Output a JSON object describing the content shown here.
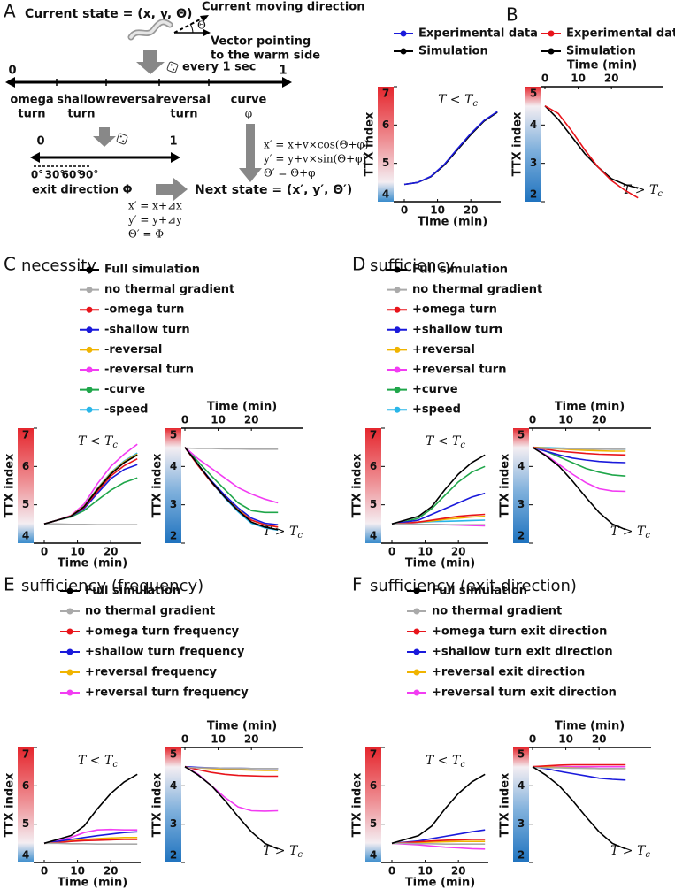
{
  "diagram": {
    "label": "A",
    "current_state": "Current state = (x, y, Θ)",
    "moving_direction": "Current moving direction",
    "theta": "Θ",
    "vector": [
      "Vector pointing",
      "to the warm side"
    ],
    "interval": "every 1 sec",
    "scale_start": "0",
    "scale_end": "1",
    "behaviors": [
      [
        "omega",
        "turn"
      ],
      [
        "shallow",
        "turn"
      ],
      [
        "reversal"
      ],
      [
        "reversal",
        "turn"
      ],
      [
        "curve",
        "φ"
      ]
    ],
    "exit_scale_start": "0",
    "exit_scale_end": "1",
    "angles": [
      "0°",
      "30°",
      "60°",
      "90°"
    ],
    "exit_direction": "exit direction Φ",
    "next_state": "Next state = (x′, y′, Θ′)",
    "turn_update": [
      "x′ = x+⊿x",
      "y′ = y+⊿y",
      "Θ′ = Φ"
    ],
    "curve_update": [
      "x′ = x+v×cos(Θ+φ)",
      "y′ = y+v×sin(Θ+φ)",
      "Θ′ = Θ+φ"
    ]
  },
  "chart_data": [
    {
      "type": "line",
      "label": "B",
      "x": [
        0,
        4,
        8,
        12,
        16,
        20,
        24,
        28
      ],
      "xlim": [
        0,
        29
      ],
      "xticks": [
        0,
        10,
        20
      ],
      "xlabel": "Time (min)",
      "ylabel": "TTX index",
      "left": {
        "ylim": [
          4,
          7
        ],
        "yticks": [
          4,
          5,
          6,
          7
        ],
        "annotation": {
          "main": "T < T",
          "subscript": "c"
        }
      },
      "right": {
        "ylim": [
          2,
          5
        ],
        "yticks": [
          2,
          3,
          4,
          5
        ],
        "annotation": {
          "main": "T > T",
          "subscript": "c"
        }
      },
      "series": [
        {
          "name": "Experimental data",
          "color": "#1a1adb",
          "values": [
            4.45,
            4.5,
            4.66,
            4.97,
            5.38,
            5.78,
            6.12,
            6.35
          ]
        },
        {
          "name": "Simulation",
          "color": "#000000",
          "values": [
            4.45,
            4.5,
            4.65,
            4.95,
            5.35,
            5.75,
            6.1,
            6.33
          ]
        },
        {
          "name": "Experimental data",
          "color": "#e8141b",
          "values_right": [
            4.5,
            4.3,
            3.85,
            3.35,
            2.9,
            2.55,
            2.3,
            2.1
          ]
        },
        {
          "name": "Simulation",
          "color": "#000000",
          "values_right": [
            4.5,
            4.15,
            3.7,
            3.25,
            2.9,
            2.6,
            2.45,
            2.35
          ]
        }
      ]
    },
    {
      "type": "line",
      "label": "C",
      "title": "necessity",
      "x": [
        0,
        4,
        8,
        12,
        16,
        20,
        24,
        28
      ],
      "xlim": [
        0,
        29
      ],
      "xticks": [
        0,
        10,
        20
      ],
      "xlabel": "Time (min)",
      "ylabel": "TTX index",
      "left": {
        "ylim": [
          4,
          7
        ],
        "yticks": [
          4,
          5,
          6,
          7
        ],
        "annotation": {
          "main": "T < T",
          "subscript": "c"
        }
      },
      "right": {
        "ylim": [
          2,
          5
        ],
        "yticks": [
          2,
          3,
          4,
          5
        ],
        "annotation": {
          "main": "T > T",
          "subscript": "c"
        }
      },
      "series": [
        {
          "name": "Full simulation",
          "color": "#000000",
          "values": [
            4.5,
            4.6,
            4.7,
            4.95,
            5.4,
            5.8,
            6.1,
            6.3
          ],
          "values_right": [
            4.5,
            4.05,
            3.6,
            3.2,
            2.85,
            2.55,
            2.42,
            2.35
          ]
        },
        {
          "name": "no thermal gradient",
          "color": "#aaaaaa",
          "values": [
            4.5,
            4.5,
            4.49,
            4.49,
            4.48,
            4.48,
            4.48,
            4.48
          ],
          "values_right": [
            4.48,
            4.47,
            4.47,
            4.46,
            4.46,
            4.45,
            4.45,
            4.45
          ]
        },
        {
          "name": "-omega turn",
          "color": "#e8141b",
          "values": [
            4.5,
            4.6,
            4.7,
            4.93,
            5.35,
            5.75,
            6.02,
            6.2
          ],
          "values_right": [
            4.5,
            4.02,
            3.58,
            3.2,
            2.85,
            2.6,
            2.48,
            2.42
          ]
        },
        {
          "name": "-shallow turn",
          "color": "#1a1adb",
          "values": [
            4.5,
            4.6,
            4.7,
            4.9,
            5.3,
            5.68,
            5.92,
            6.05
          ],
          "values_right": [
            4.5,
            4.05,
            3.62,
            3.25,
            2.92,
            2.65,
            2.52,
            2.48
          ]
        },
        {
          "name": "-reversal",
          "color": "#f0b400",
          "values": [
            4.5,
            4.6,
            4.71,
            4.96,
            5.42,
            5.82,
            6.12,
            6.32
          ],
          "values_right": [
            4.5,
            4.04,
            3.6,
            3.22,
            2.88,
            2.6,
            2.48,
            2.42
          ]
        },
        {
          "name": "-reversal turn",
          "color": "#f23cf2",
          "values": [
            4.5,
            4.6,
            4.72,
            5.02,
            5.55,
            6.0,
            6.32,
            6.58
          ],
          "values_right": [
            4.5,
            4.2,
            3.95,
            3.7,
            3.45,
            3.28,
            3.15,
            3.05
          ]
        },
        {
          "name": "-curve",
          "color": "#1fa64a",
          "values": [
            4.5,
            4.6,
            4.68,
            4.85,
            5.12,
            5.38,
            5.58,
            5.7
          ],
          "values_right": [
            4.5,
            4.12,
            3.75,
            3.4,
            3.05,
            2.85,
            2.8,
            2.8
          ]
        },
        {
          "name": "-speed",
          "color": "#29b6e8",
          "values": [
            4.5,
            4.6,
            4.71,
            4.97,
            5.43,
            5.84,
            6.14,
            6.35
          ],
          "values_right": [
            4.5,
            4.03,
            3.58,
            3.18,
            2.82,
            2.52,
            2.4,
            2.34
          ]
        }
      ]
    },
    {
      "type": "line",
      "label": "D",
      "title": "sufficiency",
      "x": [
        0,
        4,
        8,
        12,
        16,
        20,
        24,
        28
      ],
      "xlim": [
        0,
        29
      ],
      "xticks": [
        0,
        10,
        20
      ],
      "xlabel": "Time (min)",
      "ylabel": "TTX index",
      "left": {
        "ylim": [
          4,
          7
        ],
        "yticks": [
          4,
          5,
          6,
          7
        ],
        "annotation": {
          "main": "T < T",
          "subscript": "c"
        }
      },
      "right": {
        "ylim": [
          2,
          5
        ],
        "yticks": [
          2,
          3,
          4,
          5
        ],
        "annotation": {
          "main": "T > T",
          "subscript": "c"
        }
      },
      "series": [
        {
          "name": "Full simulation",
          "color": "#000000",
          "values": [
            4.5,
            4.6,
            4.7,
            4.95,
            5.4,
            5.8,
            6.1,
            6.3
          ],
          "values_right": [
            4.5,
            4.28,
            4.0,
            3.62,
            3.2,
            2.8,
            2.5,
            2.35
          ]
        },
        {
          "name": "no thermal gradient",
          "color": "#aaaaaa",
          "values": [
            4.5,
            4.5,
            4.49,
            4.49,
            4.48,
            4.48,
            4.48,
            4.48
          ],
          "values_right": [
            4.48,
            4.47,
            4.47,
            4.46,
            4.46,
            4.45,
            4.45,
            4.45
          ]
        },
        {
          "name": "+omega turn",
          "color": "#e8141b",
          "values": [
            4.5,
            4.52,
            4.55,
            4.6,
            4.65,
            4.7,
            4.73,
            4.75
          ],
          "values_right": [
            4.5,
            4.45,
            4.4,
            4.37,
            4.34,
            4.32,
            4.31,
            4.3
          ]
        },
        {
          "name": "+shallow turn",
          "color": "#1a1adb",
          "values": [
            4.5,
            4.55,
            4.6,
            4.75,
            4.9,
            5.05,
            5.2,
            5.3
          ],
          "values_right": [
            4.5,
            4.4,
            4.3,
            4.22,
            4.17,
            4.13,
            4.11,
            4.1
          ]
        },
        {
          "name": "+reversal",
          "color": "#f0b400",
          "values": [
            4.5,
            4.52,
            4.55,
            4.58,
            4.62,
            4.65,
            4.68,
            4.7
          ],
          "values_right": [
            4.5,
            4.48,
            4.46,
            4.44,
            4.42,
            4.41,
            4.4,
            4.4
          ]
        },
        {
          "name": "+reversal turn",
          "color": "#f23cf2",
          "values": [
            4.5,
            4.5,
            4.49,
            4.49,
            4.48,
            4.47,
            4.46,
            4.45
          ],
          "values_right": [
            4.5,
            4.3,
            4.05,
            3.8,
            3.58,
            3.42,
            3.36,
            3.35
          ]
        },
        {
          "name": "+curve",
          "color": "#1fa64a",
          "values": [
            4.5,
            4.56,
            4.65,
            4.9,
            5.25,
            5.6,
            5.85,
            6.0
          ],
          "values_right": [
            4.5,
            4.4,
            4.25,
            4.1,
            3.95,
            3.85,
            3.78,
            3.75
          ]
        },
        {
          "name": "+speed",
          "color": "#29b6e8",
          "values": [
            4.5,
            4.52,
            4.54,
            4.56,
            4.57,
            4.58,
            4.59,
            4.6
          ],
          "values_right": [
            4.5,
            4.49,
            4.48,
            4.47,
            4.46,
            4.46,
            4.45,
            4.45
          ]
        }
      ]
    },
    {
      "type": "line",
      "label": "E",
      "title": "sufficiency (frequency)",
      "x": [
        0,
        4,
        8,
        12,
        16,
        20,
        24,
        28
      ],
      "xlim": [
        0,
        29
      ],
      "xticks": [
        0,
        10,
        20
      ],
      "xlabel": "Time (min)",
      "ylabel": "TTX index",
      "left": {
        "ylim": [
          4,
          7
        ],
        "yticks": [
          4,
          5,
          6,
          7
        ],
        "annotation": {
          "main": "T < T",
          "subscript": "c"
        }
      },
      "right": {
        "ylim": [
          2,
          5
        ],
        "yticks": [
          2,
          3,
          4,
          5
        ],
        "annotation": {
          "main": "T > T",
          "subscript": "c"
        }
      },
      "series": [
        {
          "name": "Full simulation",
          "color": "#000000",
          "values": [
            4.5,
            4.6,
            4.7,
            4.95,
            5.4,
            5.8,
            6.1,
            6.3
          ],
          "values_right": [
            4.5,
            4.28,
            4.0,
            3.62,
            3.2,
            2.8,
            2.5,
            2.35
          ]
        },
        {
          "name": "no thermal gradient",
          "color": "#aaaaaa",
          "values": [
            4.5,
            4.5,
            4.49,
            4.49,
            4.48,
            4.48,
            4.48,
            4.48
          ],
          "values_right": [
            4.48,
            4.47,
            4.47,
            4.46,
            4.46,
            4.45,
            4.45,
            4.45
          ]
        },
        {
          "name": "+omega turn frequency",
          "color": "#e8141b",
          "values": [
            4.5,
            4.52,
            4.55,
            4.57,
            4.58,
            4.59,
            4.6,
            4.6
          ],
          "values_right": [
            4.5,
            4.42,
            4.35,
            4.3,
            4.27,
            4.26,
            4.25,
            4.25
          ]
        },
        {
          "name": "+shallow turn frequency",
          "color": "#1a1adb",
          "values": [
            4.5,
            4.55,
            4.6,
            4.65,
            4.7,
            4.74,
            4.78,
            4.8
          ],
          "values_right": [
            4.5,
            4.48,
            4.47,
            4.46,
            4.46,
            4.45,
            4.45,
            4.45
          ]
        },
        {
          "name": "+reversal frequency",
          "color": "#f0b400",
          "values": [
            4.5,
            4.53,
            4.56,
            4.6,
            4.62,
            4.64,
            4.65,
            4.65
          ],
          "values_right": [
            4.5,
            4.47,
            4.45,
            4.43,
            4.42,
            4.41,
            4.4,
            4.4
          ]
        },
        {
          "name": "+reversal turn frequency",
          "color": "#f23cf2",
          "values": [
            4.5,
            4.56,
            4.65,
            4.78,
            4.85,
            4.86,
            4.85,
            4.85
          ],
          "values_right": [
            4.5,
            4.3,
            4.0,
            3.7,
            3.45,
            3.35,
            3.34,
            3.35
          ]
        }
      ]
    },
    {
      "type": "line",
      "label": "F",
      "title": "sufficiency (exit direction)",
      "x": [
        0,
        4,
        8,
        12,
        16,
        20,
        24,
        28
      ],
      "xlim": [
        0,
        29
      ],
      "xticks": [
        0,
        10,
        20
      ],
      "xlabel": "Time (min)",
      "ylabel": "TTX index",
      "left": {
        "ylim": [
          4,
          7
        ],
        "yticks": [
          4,
          5,
          6,
          7
        ],
        "annotation": {
          "main": "T < T",
          "subscript": "c"
        }
      },
      "right": {
        "ylim": [
          2,
          5
        ],
        "yticks": [
          2,
          3,
          4,
          5
        ],
        "annotation": {
          "main": "T > T",
          "subscript": "c"
        }
      },
      "series": [
        {
          "name": "Full simulation",
          "color": "#000000",
          "values": [
            4.5,
            4.6,
            4.7,
            4.95,
            5.4,
            5.8,
            6.1,
            6.3
          ],
          "values_right": [
            4.5,
            4.28,
            4.0,
            3.62,
            3.2,
            2.8,
            2.5,
            2.35
          ]
        },
        {
          "name": "no thermal gradient",
          "color": "#aaaaaa",
          "values": [
            4.5,
            4.5,
            4.49,
            4.49,
            4.48,
            4.48,
            4.48,
            4.48
          ],
          "values_right": [
            4.48,
            4.47,
            4.47,
            4.46,
            4.46,
            4.45,
            4.45,
            4.45
          ]
        },
        {
          "name": "+omega turn exit direction",
          "color": "#e8141b",
          "values": [
            4.5,
            4.52,
            4.54,
            4.56,
            4.58,
            4.59,
            4.6,
            4.6
          ],
          "values_right": [
            4.5,
            4.52,
            4.54,
            4.55,
            4.55,
            4.55,
            4.55,
            4.55
          ]
        },
        {
          "name": "+shallow turn exit direction",
          "color": "#1a1adb",
          "values": [
            4.5,
            4.53,
            4.56,
            4.62,
            4.68,
            4.74,
            4.8,
            4.85
          ],
          "values_right": [
            4.5,
            4.45,
            4.38,
            4.32,
            4.26,
            4.2,
            4.17,
            4.15
          ]
        },
        {
          "name": "+reversal exit direction",
          "color": "#f0b400",
          "values": [
            4.5,
            4.51,
            4.52,
            4.53,
            4.54,
            4.55,
            4.55,
            4.55
          ],
          "values_right": [
            4.5,
            4.49,
            4.48,
            4.47,
            4.46,
            4.45,
            4.45,
            4.45
          ]
        },
        {
          "name": "+reversal turn exit direction",
          "color": "#f23cf2",
          "values": [
            4.5,
            4.48,
            4.46,
            4.43,
            4.4,
            4.38,
            4.36,
            4.35
          ],
          "values_right": [
            4.5,
            4.5,
            4.5,
            4.5,
            4.5,
            4.5,
            4.5,
            4.5
          ]
        }
      ]
    }
  ]
}
